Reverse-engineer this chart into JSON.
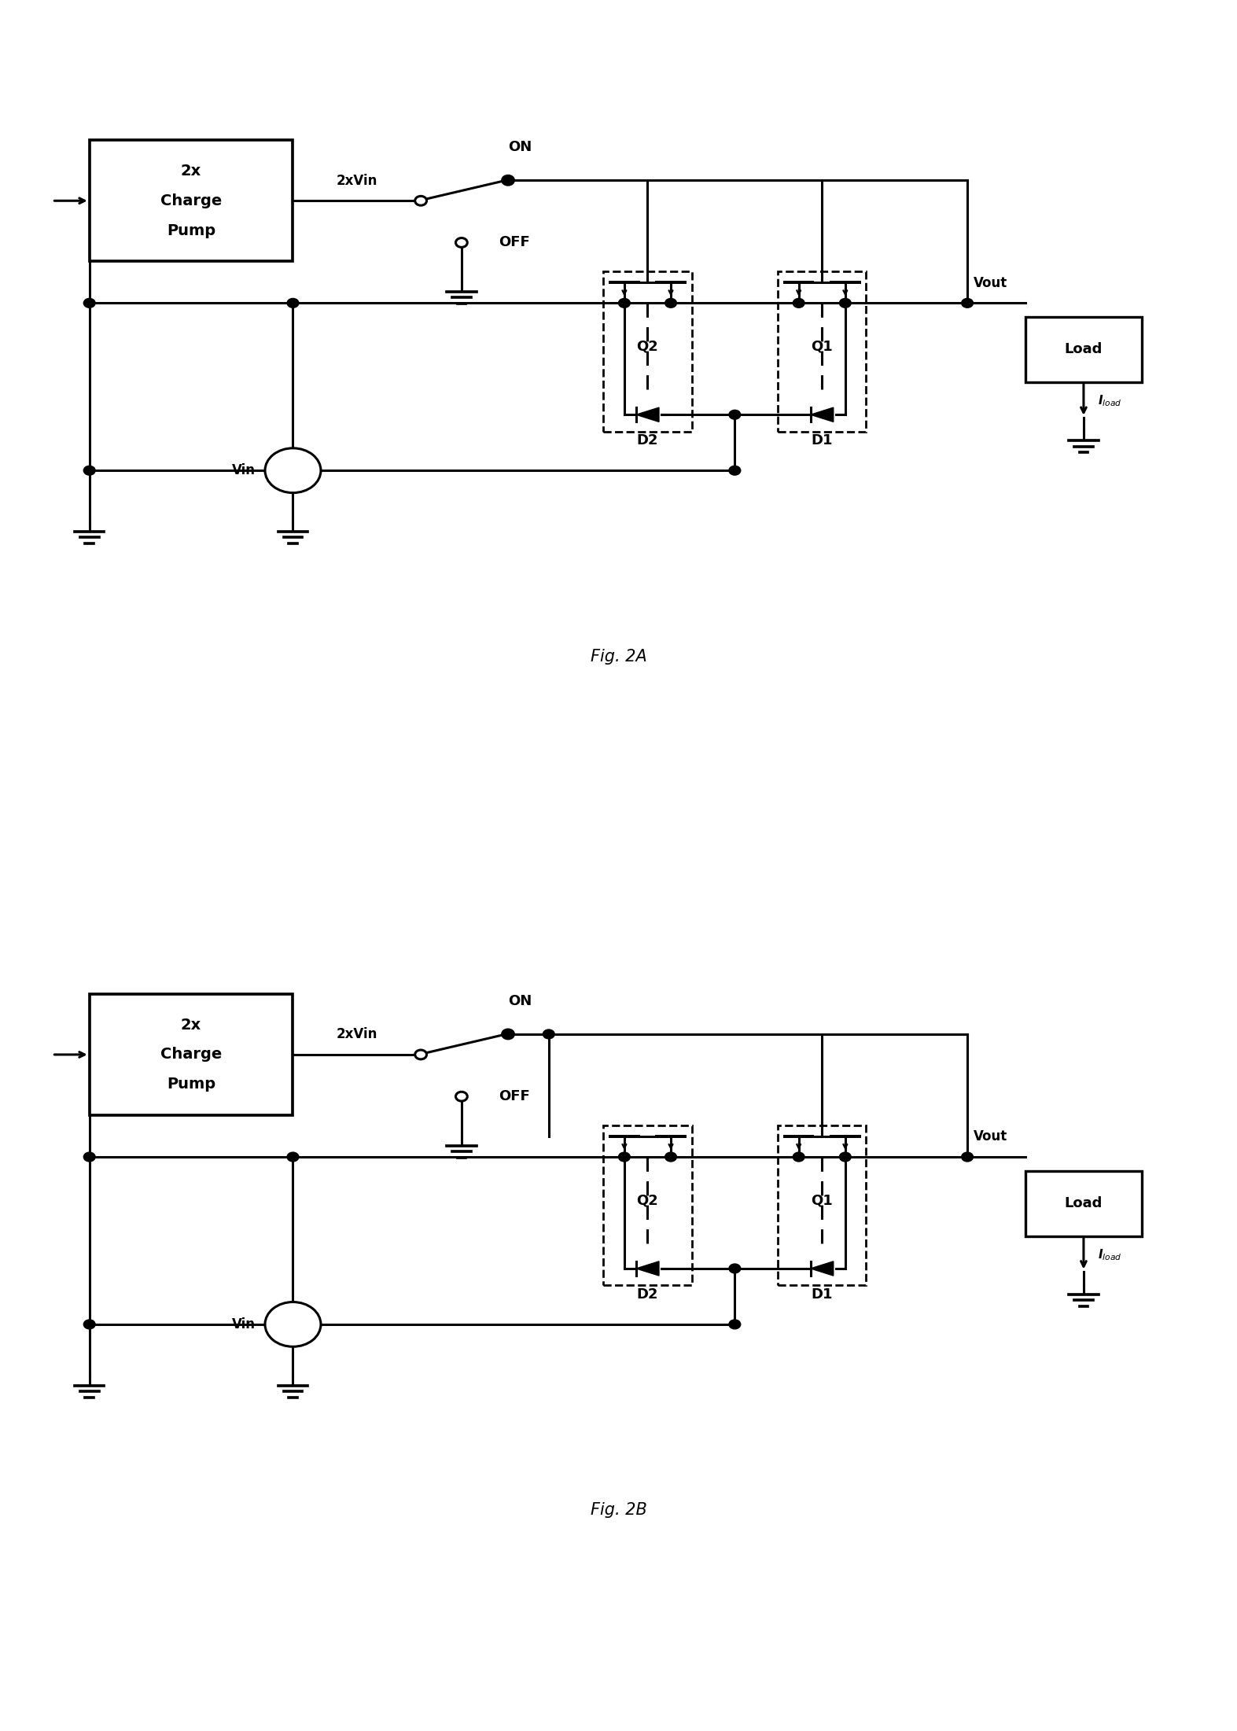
{
  "fig_width": 15.73,
  "fig_height": 22.01,
  "dpi": 100,
  "background_color": "#ffffff",
  "line_color": "#000000",
  "line_width": 2.2,
  "fig2a_label": "Fig. 2A",
  "fig2b_label": "Fig. 2B",
  "charge_pump_lines": [
    "2x",
    "Charge",
    "Pump"
  ],
  "label_2xvin": "2xVin",
  "label_on": "ON",
  "label_off": "OFF",
  "label_vin": "Vin",
  "label_vout": "Vout",
  "label_load": "Load",
  "label_iload": "I_load",
  "label_q1": "Q1",
  "label_q2": "Q2",
  "label_d1": "D1",
  "label_d2": "D2"
}
